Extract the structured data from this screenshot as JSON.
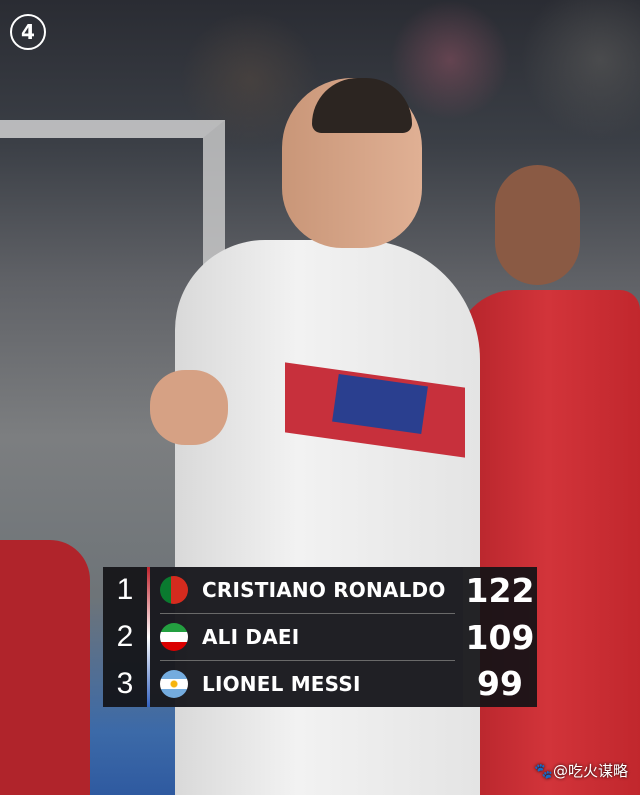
{
  "badge_number": "4",
  "leaderboard": {
    "rows": [
      {
        "rank": "1",
        "name": "CRISTIANO RONALDO",
        "score": "122",
        "flag": "portugal-flag-icon"
      },
      {
        "rank": "2",
        "name": "ALI DAEI",
        "score": "109",
        "flag": "iran-flag-icon"
      },
      {
        "rank": "3",
        "name": "LIONEL MESSI",
        "score": "99",
        "flag": "argentina-flag-icon"
      }
    ]
  },
  "watermark": "🐾@吃火谋略",
  "colors": {
    "panel": "#121216",
    "portugal_red": "#c0202a",
    "argentina_blue": "#74acdf"
  }
}
